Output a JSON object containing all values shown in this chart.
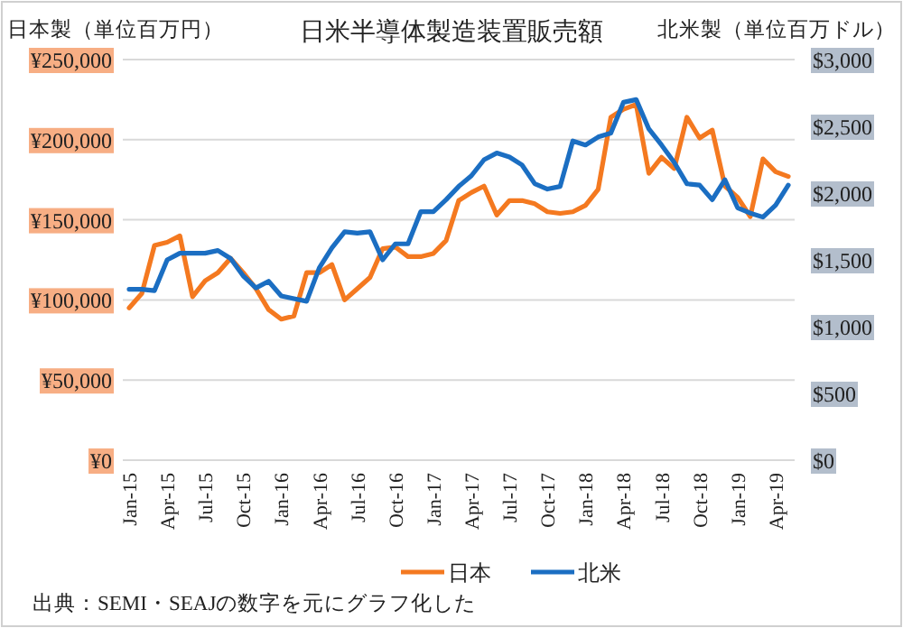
{
  "chart_data": {
    "type": "line",
    "title": "日米半導体製造装置販売額",
    "ylabel": "日本製（単位百万円）",
    "y2label": "北米製（単位百万ドル）",
    "categories": [
      "Jan-15",
      null,
      null,
      "Apr-15",
      null,
      null,
      "Jul-15",
      null,
      null,
      "Oct-15",
      null,
      null,
      "Jan-16",
      null,
      null,
      "Apr-16",
      null,
      null,
      "Jul-16",
      null,
      null,
      "Oct-16",
      null,
      null,
      "Jan-17",
      null,
      null,
      "Apr-17",
      null,
      null,
      "Jul-17",
      null,
      null,
      "Oct-17",
      null,
      null,
      "Jan-18",
      null,
      null,
      "Apr-18",
      null,
      null,
      "Jul-18",
      null,
      null,
      "Oct-18",
      null,
      null,
      "Jan-19",
      null,
      null,
      "Apr-19",
      null
    ],
    "series": [
      {
        "name": "日本",
        "color": "#f47920",
        "values": [
          95000,
          104000,
          134000,
          136000,
          140000,
          102000,
          112000,
          117000,
          126000,
          117000,
          107000,
          94000,
          88000,
          90000,
          117000,
          117000,
          122000,
          100000,
          107000,
          114000,
          132000,
          133000,
          127000,
          127000,
          129000,
          137000,
          162000,
          167000,
          171000,
          153000,
          162000,
          162000,
          160000,
          155000,
          154000,
          155000,
          159000,
          169000,
          214000,
          219000,
          222000,
          179000,
          189000,
          182000,
          214000,
          201000,
          206000,
          171000,
          164000,
          152000,
          188000,
          180000,
          177000
        ]
      },
      {
        "name": "北米",
        "color": "#1b6ec2",
        "axis": "y2",
        "values": [
          1280,
          1280,
          1270,
          1500,
          1550,
          1550,
          1550,
          1570,
          1510,
          1380,
          1290,
          1340,
          1230,
          1210,
          1190,
          1440,
          1590,
          1710,
          1700,
          1710,
          1500,
          1620,
          1620,
          1860,
          1860,
          1950,
          2050,
          2130,
          2250,
          2300,
          2270,
          2210,
          2070,
          2030,
          2050,
          2390,
          2360,
          2420,
          2450,
          2680,
          2700,
          2480,
          2360,
          2230,
          2070,
          2060,
          1950,
          2100,
          1890,
          1850,
          1820,
          1910,
          2060
        ]
      }
    ],
    "ylim": [
      0,
      250000
    ],
    "yticks": [
      {
        "value": 0,
        "label": "¥0"
      },
      {
        "value": 50000,
        "label": "¥50,000"
      },
      {
        "value": 100000,
        "label": "¥100,000"
      },
      {
        "value": 150000,
        "label": "¥150,000"
      },
      {
        "value": 200000,
        "label": "¥200,000"
      },
      {
        "value": 250000,
        "label": "¥250,000"
      }
    ],
    "y2lim": [
      0,
      3000
    ],
    "y2ticks": [
      {
        "value": 0,
        "label": "$0"
      },
      {
        "value": 500,
        "label": "$500"
      },
      {
        "value": 1000,
        "label": "$1,000"
      },
      {
        "value": 1500,
        "label": "$1,500"
      },
      {
        "value": 2000,
        "label": "$2,000"
      },
      {
        "value": 2500,
        "label": "$2,500"
      },
      {
        "value": 3000,
        "label": "$3,000"
      }
    ],
    "grid": "y",
    "legend": "bottom",
    "annotations": [
      "出典：SEMI・SEAJの数字を元にグラフ化した"
    ]
  }
}
